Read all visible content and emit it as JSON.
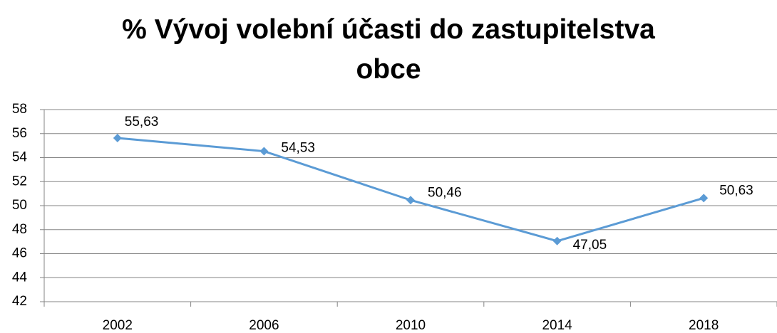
{
  "chart_data": {
    "type": "line",
    "title": "% Vývoj volební účasti do zastupitelstva obce",
    "categories": [
      "2002",
      "2006",
      "2010",
      "2014",
      "2018"
    ],
    "values": [
      55.63,
      54.53,
      50.46,
      47.05,
      50.63
    ],
    "value_labels": [
      "55,63",
      "54,53",
      "50,46",
      "47,05",
      "50,63"
    ],
    "color": "#5b9bd5",
    "ylim": [
      42,
      58
    ],
    "yticks": [
      42,
      44,
      46,
      48,
      50,
      52,
      54,
      56,
      58
    ],
    "grid": true
  }
}
